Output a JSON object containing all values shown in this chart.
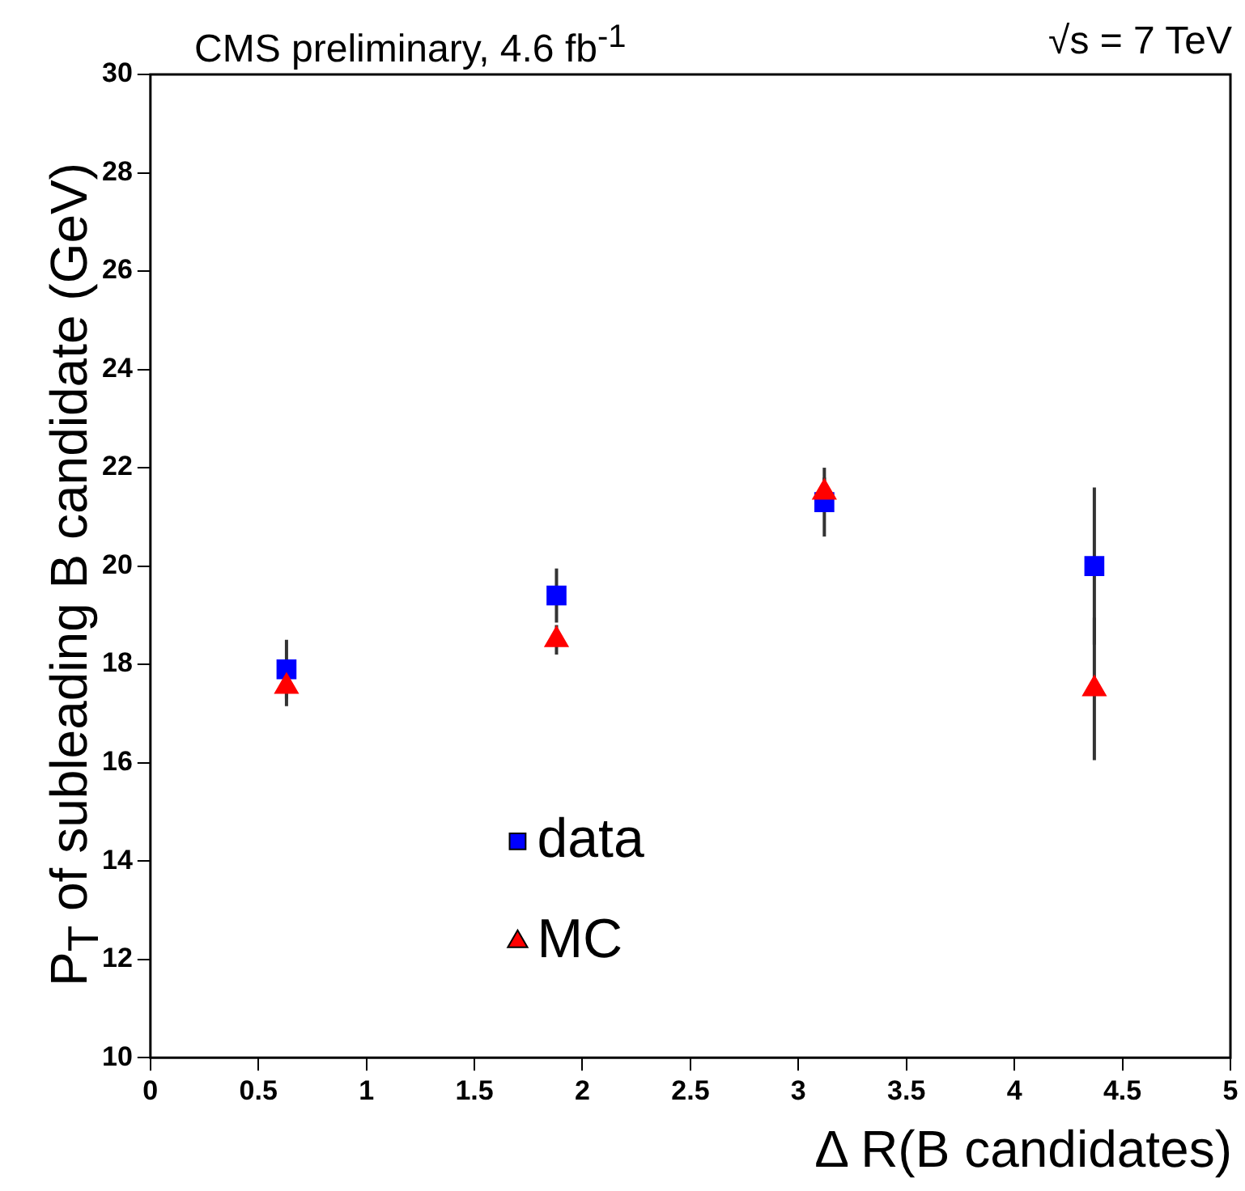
{
  "chart_data": {
    "type": "scatter",
    "title": "CMS preliminary, 4.6 fb$^{-1}$",
    "annotations": [
      "√s = 7 TeV"
    ],
    "xlabel": "Δ R(B candidates)",
    "ylabel": "P$_{T}$ of subleading B candidate (GeV)",
    "xlim": [
      0,
      5
    ],
    "xticks": [
      0,
      0.5,
      1,
      1.5,
      2,
      2.5,
      3,
      3.5,
      4,
      4.5,
      5
    ],
    "ylim": [
      10,
      30
    ],
    "yticks": [
      10,
      12,
      14,
      16,
      18,
      20,
      22,
      24,
      26,
      28,
      30
    ],
    "grid": false,
    "legend": "bottom",
    "series": [
      {
        "name": "data",
        "color": "#0000ff",
        "marker": "square",
        "x": [
          0.63,
          1.88,
          3.12,
          4.37
        ],
        "values": [
          17.9,
          19.4,
          21.3,
          20.0
        ],
        "errors": [
          0.6,
          0.55,
          0.7,
          1.6
        ]
      },
      {
        "name": "MC",
        "color": "#ff0000",
        "marker": "triangle",
        "x": [
          0.63,
          1.88,
          3.12,
          4.37
        ],
        "values": [
          17.55,
          18.5,
          21.5,
          17.5
        ],
        "errors": [
          0.4,
          0.3,
          0.3,
          1.45
        ]
      }
    ]
  }
}
